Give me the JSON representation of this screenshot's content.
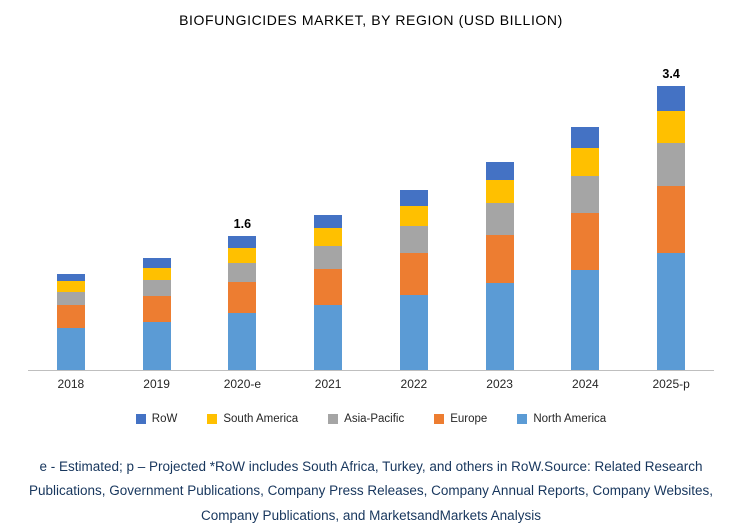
{
  "chart_data": {
    "type": "bar",
    "stacked": true,
    "title": "BIOFUNGICIDES MARKET, BY REGION (USD BILLION)",
    "categories": [
      "2018",
      "2019",
      "2020-e",
      "2021",
      "2022",
      "2023",
      "2024",
      "2025-p"
    ],
    "series": [
      {
        "name": "North America",
        "color": "#5B9BD5",
        "values": [
          0.5,
          0.58,
          0.68,
          0.78,
          0.9,
          1.04,
          1.2,
          1.4
        ]
      },
      {
        "name": "Europe",
        "color": "#ED7D31",
        "values": [
          0.27,
          0.31,
          0.37,
          0.43,
          0.5,
          0.58,
          0.68,
          0.8
        ]
      },
      {
        "name": "Asia-Pacific",
        "color": "#A5A5A5",
        "values": [
          0.16,
          0.19,
          0.23,
          0.27,
          0.32,
          0.38,
          0.44,
          0.52
        ]
      },
      {
        "name": "South America",
        "color": "#FFC000",
        "values": [
          0.13,
          0.15,
          0.18,
          0.21,
          0.24,
          0.28,
          0.33,
          0.38
        ]
      },
      {
        "name": "RoW",
        "color": "#4472C4",
        "values": [
          0.09,
          0.12,
          0.14,
          0.16,
          0.19,
          0.22,
          0.25,
          0.3
        ]
      }
    ],
    "totals": [
      1.15,
      1.35,
      1.6,
      1.85,
      2.15,
      2.5,
      2.9,
      3.4
    ],
    "totals_labels": [
      "",
      "",
      "1.6",
      "",
      "",
      "",
      "",
      "3.4"
    ],
    "legend": [
      "RoW",
      "South America",
      "Asia-Pacific",
      "Europe",
      "North America"
    ],
    "legend_position": "bottom",
    "grid": false,
    "xlabel": "",
    "ylabel": "",
    "ylim": [
      0,
      3.6
    ]
  },
  "footnote": {
    "text": "e - Estimated; p – Projected *RoW includes South Africa, Turkey, and others in RoW.Source: Related Research Publications, Government Publications, Company Press Releases, Company Annual Reports, Company Websites, Company Publications, and MarketsandMarkets Analysis"
  }
}
